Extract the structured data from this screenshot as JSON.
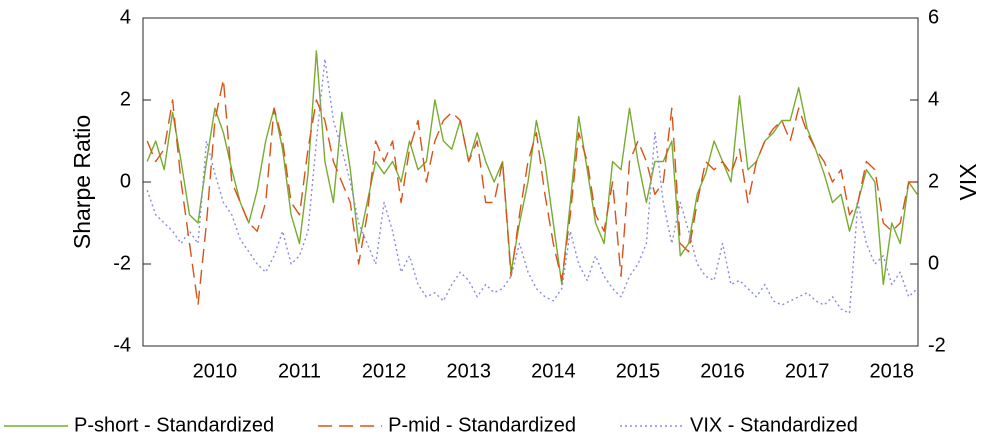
{
  "chart_data": {
    "type": "line",
    "y_label": "Sharpe Ratio",
    "y2_label": "VIX",
    "x": [
      2009.7,
      2009.8,
      2009.9,
      2010.0,
      2010.1,
      2010.2,
      2010.3,
      2010.4,
      2010.5,
      2010.6,
      2010.7,
      2010.8,
      2010.9,
      2011.0,
      2011.1,
      2011.2,
      2011.3,
      2011.4,
      2011.5,
      2011.6,
      2011.7,
      2011.8,
      2011.9,
      2012.0,
      2012.1,
      2012.2,
      2012.3,
      2012.4,
      2012.5,
      2012.6,
      2012.7,
      2012.8,
      2012.9,
      2013.0,
      2013.1,
      2013.2,
      2013.3,
      2013.4,
      2013.5,
      2013.6,
      2013.7,
      2013.8,
      2013.9,
      2014.0,
      2014.1,
      2014.2,
      2014.3,
      2014.4,
      2014.5,
      2014.6,
      2014.7,
      2014.8,
      2014.9,
      2015.0,
      2015.1,
      2015.2,
      2015.3,
      2015.4,
      2015.5,
      2015.6,
      2015.7,
      2015.8,
      2015.9,
      2016.0,
      2016.1,
      2016.2,
      2016.3,
      2016.4,
      2016.5,
      2016.6,
      2016.7,
      2016.8,
      2016.9,
      2017.0,
      2017.1,
      2017.2,
      2017.3,
      2017.4,
      2017.5,
      2017.6,
      2017.7,
      2017.8,
      2017.9,
      2018.0,
      2018.1,
      2018.2,
      2018.3,
      2018.4,
      2018.5,
      2018.6,
      2018.7,
      2018.8
    ],
    "series": [
      {
        "name": "P-short - Standardized",
        "color": "#77ac30",
        "style": "solid",
        "values": [
          0.5,
          1.0,
          0.3,
          1.7,
          0.5,
          -0.8,
          -1.0,
          0.5,
          1.8,
          1.2,
          0.3,
          -0.5,
          -1.0,
          -0.2,
          1.0,
          1.8,
          0.8,
          -0.8,
          -1.5,
          0.2,
          3.2,
          0.5,
          -0.5,
          1.7,
          0.3,
          -1.5,
          -0.5,
          0.5,
          0.2,
          0.5,
          0.0,
          1.0,
          0.3,
          0.5,
          2.0,
          1.0,
          0.8,
          1.5,
          0.5,
          1.2,
          0.5,
          0.0,
          0.5,
          -2.2,
          -1.0,
          0.0,
          1.5,
          0.5,
          -1.0,
          -2.5,
          -0.5,
          1.6,
          0.3,
          -1.0,
          -1.5,
          0.5,
          0.3,
          1.8,
          0.5,
          -0.5,
          0.5,
          0.5,
          1.0,
          -1.8,
          -1.5,
          -0.3,
          0.2,
          1.0,
          0.5,
          0.0,
          2.1,
          0.3,
          0.5,
          1.0,
          1.2,
          1.5,
          1.5,
          2.3,
          1.3,
          0.8,
          0.2,
          -0.5,
          -0.3,
          -1.2,
          -0.5,
          0.3,
          0.0,
          -2.5,
          -1.0,
          -1.5,
          0.0,
          -0.3
        ]
      },
      {
        "name": "P-mid - Standardized",
        "color": "#d95319",
        "style": "dashed",
        "values": [
          1.0,
          0.5,
          0.8,
          2.0,
          0.0,
          -1.5,
          -3.0,
          -1.0,
          1.5,
          2.5,
          0.0,
          -0.5,
          -1.0,
          -1.2,
          -0.5,
          1.8,
          1.0,
          -0.5,
          -0.8,
          0.8,
          2.0,
          1.5,
          0.5,
          0.0,
          -0.5,
          -2.0,
          -0.8,
          1.0,
          0.5,
          1.0,
          -0.5,
          0.8,
          1.5,
          0.0,
          1.0,
          1.5,
          1.7,
          1.5,
          0.5,
          1.0,
          -0.5,
          -0.5,
          0.5,
          -2.3,
          -0.8,
          0.5,
          1.2,
          -0.3,
          -1.5,
          -2.4,
          -0.8,
          1.2,
          0.5,
          -0.8,
          -1.2,
          0.0,
          -2.3,
          0.5,
          1.0,
          0.5,
          -0.3,
          0.0,
          1.8,
          -1.5,
          -1.7,
          -0.5,
          0.5,
          0.3,
          0.5,
          0.2,
          0.8,
          -0.5,
          0.5,
          1.0,
          1.3,
          1.5,
          1.0,
          1.8,
          1.2,
          0.8,
          0.5,
          0.0,
          0.3,
          -0.8,
          -0.5,
          0.5,
          0.3,
          -1.0,
          -1.2,
          -1.0,
          0.0,
          0.0
        ]
      },
      {
        "name": "VIX - Standardized",
        "color": "#8a8ae6",
        "style": "dotted",
        "axis": "y2",
        "values": [
          1.8,
          1.2,
          1.0,
          0.8,
          0.5,
          0.8,
          0.5,
          3.0,
          2.2,
          1.5,
          1.2,
          0.6,
          0.3,
          0.0,
          -0.2,
          0.2,
          0.8,
          0.0,
          0.2,
          0.8,
          3.0,
          5.0,
          3.5,
          2.8,
          2.0,
          1.0,
          0.5,
          0.0,
          1.5,
          0.8,
          -0.2,
          0.2,
          -0.5,
          -0.8,
          -0.7,
          -0.9,
          -0.5,
          -0.2,
          -0.4,
          -0.8,
          -0.5,
          -0.7,
          -0.6,
          -0.3,
          0.5,
          -0.2,
          -0.6,
          -0.8,
          -0.9,
          -0.6,
          0.8,
          0.0,
          -0.4,
          0.2,
          -0.3,
          -0.6,
          -0.8,
          -0.3,
          0.0,
          0.5,
          3.2,
          1.5,
          0.5,
          1.5,
          0.8,
          0.0,
          -0.3,
          -0.4,
          0.5,
          -0.5,
          -0.4,
          -0.6,
          -0.8,
          -0.5,
          -0.9,
          -1.0,
          -0.9,
          -0.8,
          -0.7,
          -0.9,
          -1.0,
          -0.8,
          -1.1,
          -1.2,
          1.5,
          0.5,
          0.0,
          0.2,
          -0.5,
          -0.2,
          -0.8,
          -0.6
        ]
      }
    ],
    "xlim": [
      2009.65,
      2018.81
    ],
    "xticks": [
      {
        "value": 2010.5,
        "label": "2010"
      },
      {
        "value": 2011.5,
        "label": "2011"
      },
      {
        "value": 2012.5,
        "label": "2012"
      },
      {
        "value": 2013.5,
        "label": "2013"
      },
      {
        "value": 2014.5,
        "label": "2014"
      },
      {
        "value": 2015.5,
        "label": "2015"
      },
      {
        "value": 2016.5,
        "label": "2016"
      },
      {
        "value": 2017.5,
        "label": "2017"
      },
      {
        "value": 2018.5,
        "label": "2018"
      }
    ],
    "ylim": [
      -4,
      4
    ],
    "yticks": [
      -4,
      -2,
      0,
      2,
      4
    ],
    "y2lim": [
      -2,
      6
    ],
    "y2ticks": [
      -2,
      0,
      2,
      4,
      6
    ],
    "grid": false,
    "legend": "bottom"
  }
}
